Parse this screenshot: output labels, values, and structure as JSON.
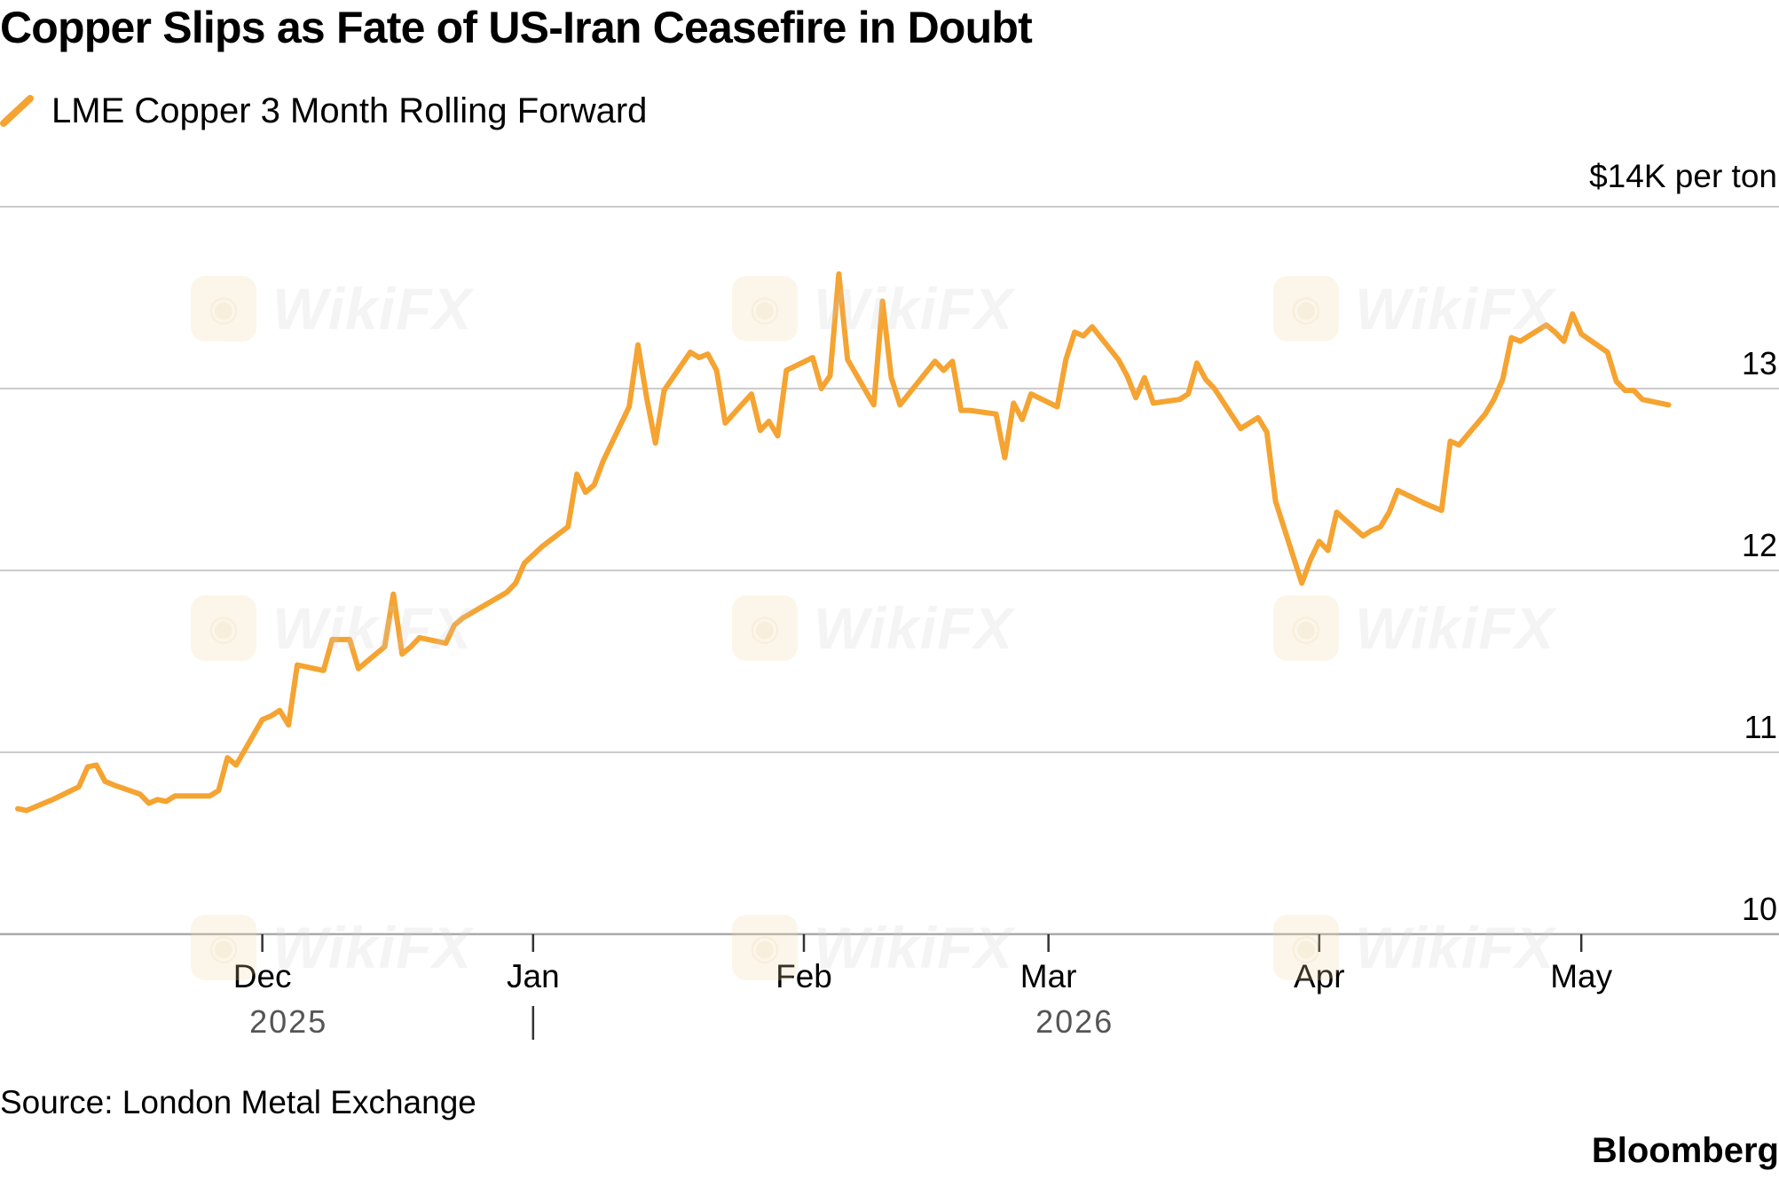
{
  "title": "Copper Slips as Fate of US-Iran Ceasefire in Doubt",
  "source": "Source: London Metal Exchange",
  "brand": "Bloomberg",
  "watermark_text": "WikiFX",
  "colors": {
    "series": "#f5a331",
    "grid": "#cccccc",
    "axis": "#333333",
    "year_label": "#555555"
  },
  "chart_data": {
    "type": "line",
    "title": "Copper Slips as Fate of US-Iran Ceasefire in Doubt",
    "ylabel": "$14K per ton",
    "y_unit_label": "$14K per ton",
    "ylim": [
      10,
      14
    ],
    "y_ticks": [
      10,
      11,
      12,
      13,
      14
    ],
    "y_tick_labels": [
      "10",
      "11",
      "12",
      "13",
      ""
    ],
    "y_axis_side": "right",
    "grid": true,
    "legend_position": "top-left",
    "x_ticks": [
      {
        "date": "2025-12-01",
        "label": "Dec"
      },
      {
        "date": "2026-01-01",
        "label": "Jan"
      },
      {
        "date": "2026-02-01",
        "label": "Feb"
      },
      {
        "date": "2026-03-01",
        "label": "Mar"
      },
      {
        "date": "2026-04-01",
        "label": "Apr"
      },
      {
        "date": "2026-05-01",
        "label": "May"
      }
    ],
    "year_labels": [
      {
        "label": "2025",
        "date": "2025-12-04"
      },
      {
        "label": "2026",
        "date": "2026-03-04"
      }
    ],
    "year_separator_date": "2026-01-01",
    "xlim": [
      "2025-11-03",
      "2026-05-15"
    ],
    "series": [
      {
        "name": "LME Copper 3 Month Rolling Forward",
        "points": [
          [
            "2025-11-03",
            10.69
          ],
          [
            "2025-11-04",
            10.68
          ],
          [
            "2025-11-05",
            10.7
          ],
          [
            "2025-11-06",
            10.72
          ],
          [
            "2025-11-07",
            10.74
          ],
          [
            "2025-11-10",
            10.81
          ],
          [
            "2025-11-11",
            10.92
          ],
          [
            "2025-11-12",
            10.93
          ],
          [
            "2025-11-13",
            10.84
          ],
          [
            "2025-11-14",
            10.82
          ],
          [
            "2025-11-17",
            10.77
          ],
          [
            "2025-11-18",
            10.72
          ],
          [
            "2025-11-19",
            10.74
          ],
          [
            "2025-11-20",
            10.73
          ],
          [
            "2025-11-21",
            10.76
          ],
          [
            "2025-11-24",
            10.76
          ],
          [
            "2025-11-25",
            10.76
          ],
          [
            "2025-11-26",
            10.79
          ],
          [
            "2025-11-27",
            10.97
          ],
          [
            "2025-11-28",
            10.93
          ],
          [
            "2025-12-01",
            11.18
          ],
          [
            "2025-12-02",
            11.2
          ],
          [
            "2025-12-03",
            11.23
          ],
          [
            "2025-12-04",
            11.15
          ],
          [
            "2025-12-05",
            11.48
          ],
          [
            "2025-12-08",
            11.45
          ],
          [
            "2025-12-09",
            11.62
          ],
          [
            "2025-12-10",
            11.62
          ],
          [
            "2025-12-11",
            11.62
          ],
          [
            "2025-12-12",
            11.46
          ],
          [
            "2025-12-15",
            11.58
          ],
          [
            "2025-12-16",
            11.87
          ],
          [
            "2025-12-17",
            11.54
          ],
          [
            "2025-12-18",
            11.58
          ],
          [
            "2025-12-19",
            11.63
          ],
          [
            "2025-12-22",
            11.6
          ],
          [
            "2025-12-23",
            11.7
          ],
          [
            "2025-12-24",
            11.74
          ],
          [
            "2025-12-29",
            11.88
          ],
          [
            "2025-12-30",
            11.93
          ],
          [
            "2025-12-31",
            12.04
          ],
          [
            "2026-01-02",
            12.13
          ],
          [
            "2026-01-05",
            12.24
          ],
          [
            "2026-01-06",
            12.53
          ],
          [
            "2026-01-07",
            12.43
          ],
          [
            "2026-01-08",
            12.47
          ],
          [
            "2026-01-09",
            12.6
          ],
          [
            "2026-01-12",
            12.9
          ],
          [
            "2026-01-13",
            13.24
          ],
          [
            "2026-01-14",
            12.95
          ],
          [
            "2026-01-15",
            12.7
          ],
          [
            "2026-01-16",
            12.99
          ],
          [
            "2026-01-19",
            13.2
          ],
          [
            "2026-01-20",
            13.17
          ],
          [
            "2026-01-21",
            13.19
          ],
          [
            "2026-01-22",
            13.1
          ],
          [
            "2026-01-23",
            12.81
          ],
          [
            "2026-01-26",
            12.97
          ],
          [
            "2026-01-27",
            12.77
          ],
          [
            "2026-01-28",
            12.82
          ],
          [
            "2026-01-29",
            12.74
          ],
          [
            "2026-01-30",
            13.1
          ],
          [
            "2026-02-02",
            13.17
          ],
          [
            "2026-02-03",
            13.0
          ],
          [
            "2026-02-04",
            13.07
          ],
          [
            "2026-02-05",
            13.63
          ],
          [
            "2026-02-06",
            13.16
          ],
          [
            "2026-02-09",
            12.91
          ],
          [
            "2026-02-10",
            13.48
          ],
          [
            "2026-02-11",
            13.06
          ],
          [
            "2026-02-12",
            12.91
          ],
          [
            "2026-02-13",
            12.97
          ],
          [
            "2026-02-16",
            13.15
          ],
          [
            "2026-02-17",
            13.1
          ],
          [
            "2026-02-18",
            13.15
          ],
          [
            "2026-02-19",
            12.88
          ],
          [
            "2026-02-20",
            12.88
          ],
          [
            "2026-02-23",
            12.86
          ],
          [
            "2026-02-24",
            12.62
          ],
          [
            "2026-02-25",
            12.92
          ],
          [
            "2026-02-26",
            12.83
          ],
          [
            "2026-02-27",
            12.97
          ],
          [
            "2026-03-02",
            12.9
          ],
          [
            "2026-03-03",
            13.16
          ],
          [
            "2026-03-04",
            13.31
          ],
          [
            "2026-03-05",
            13.29
          ],
          [
            "2026-03-06",
            13.34
          ],
          [
            "2026-03-09",
            13.16
          ],
          [
            "2026-03-10",
            13.07
          ],
          [
            "2026-03-11",
            12.95
          ],
          [
            "2026-03-12",
            13.06
          ],
          [
            "2026-03-13",
            12.92
          ],
          [
            "2026-03-16",
            12.94
          ],
          [
            "2026-03-17",
            12.97
          ],
          [
            "2026-03-18",
            13.14
          ],
          [
            "2026-03-19",
            13.05
          ],
          [
            "2026-03-20",
            13.0
          ],
          [
            "2026-03-23",
            12.78
          ],
          [
            "2026-03-24",
            12.81
          ],
          [
            "2026-03-25",
            12.84
          ],
          [
            "2026-03-26",
            12.76
          ],
          [
            "2026-03-27",
            12.38
          ],
          [
            "2026-03-30",
            11.93
          ],
          [
            "2026-03-31",
            12.06
          ],
          [
            "2026-04-01",
            12.16
          ],
          [
            "2026-04-02",
            12.11
          ],
          [
            "2026-04-03",
            12.32
          ],
          [
            "2026-04-06",
            12.19
          ],
          [
            "2026-04-07",
            12.22
          ],
          [
            "2026-04-08",
            12.24
          ],
          [
            "2026-04-09",
            12.32
          ],
          [
            "2026-04-10",
            12.44
          ],
          [
            "2026-04-13",
            12.37
          ],
          [
            "2026-04-14",
            12.35
          ],
          [
            "2026-04-15",
            12.33
          ],
          [
            "2026-04-16",
            12.71
          ],
          [
            "2026-04-17",
            12.69
          ],
          [
            "2026-04-20",
            12.86
          ],
          [
            "2026-04-21",
            12.94
          ],
          [
            "2026-04-22",
            13.05
          ],
          [
            "2026-04-23",
            13.28
          ],
          [
            "2026-04-24",
            13.26
          ],
          [
            "2026-04-27",
            13.35
          ],
          [
            "2026-04-28",
            13.31
          ],
          [
            "2026-04-29",
            13.26
          ],
          [
            "2026-04-30",
            13.41
          ],
          [
            "2026-05-01",
            13.3
          ],
          [
            "2026-05-04",
            13.2
          ],
          [
            "2026-05-05",
            13.04
          ],
          [
            "2026-05-06",
            12.99
          ],
          [
            "2026-05-07",
            12.99
          ],
          [
            "2026-05-08",
            12.94
          ],
          [
            "2026-05-11",
            12.91
          ]
        ]
      }
    ]
  }
}
